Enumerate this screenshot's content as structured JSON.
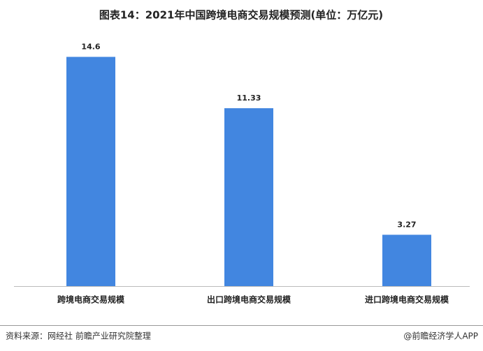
{
  "chart_data": {
    "type": "bar",
    "title": "图表14：2021年中国跨境电商交易规模预测(单位：万亿元)",
    "categories": [
      "跨境电商交易规模",
      "出口跨境电商交易规模",
      "进口跨境电商交易规模"
    ],
    "values": [
      14.6,
      11.33,
      3.27
    ],
    "color": "#4286e0",
    "source": "资料来源：网经社 前瞻产业研究院整理",
    "credit": "@前瞻经济学人APP"
  }
}
